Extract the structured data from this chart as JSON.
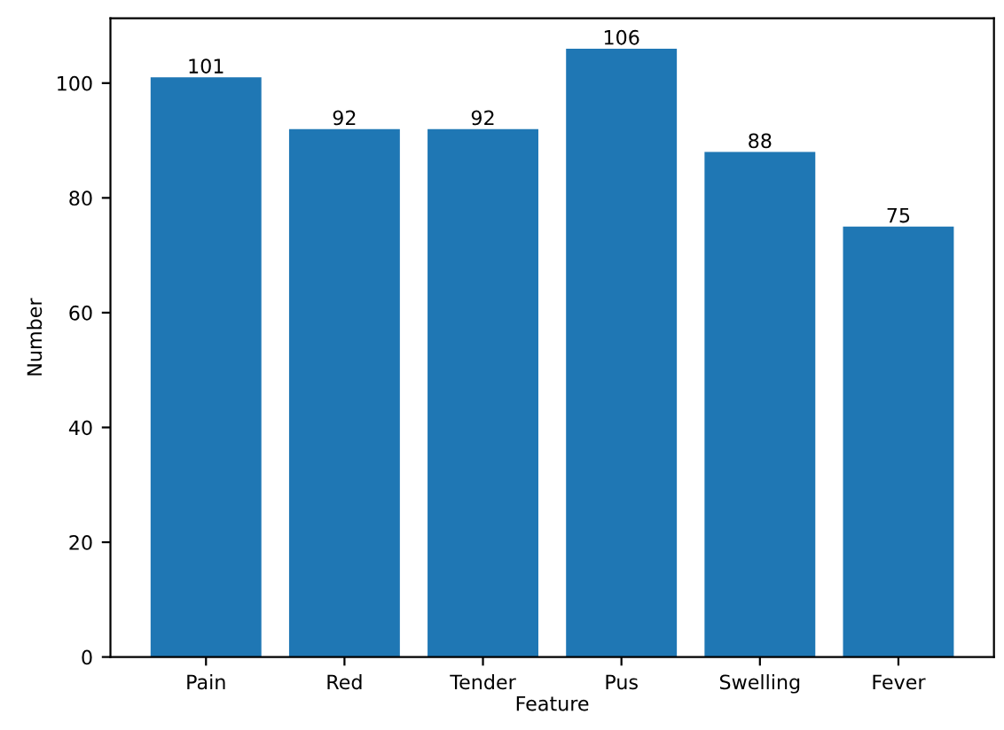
{
  "chart_data": {
    "type": "bar",
    "xlabel": "Feature",
    "ylabel": "Number",
    "categories": [
      "Pain",
      "Red",
      "Tender",
      "Pus",
      "Swelling",
      "Fever"
    ],
    "values": [
      101,
      92,
      92,
      106,
      88,
      75
    ],
    "color": "#1f77b4",
    "ylim": [
      0,
      111.3
    ],
    "yticks": [
      0,
      20,
      40,
      60,
      80,
      100
    ],
    "data_labels": true,
    "grid": false
  }
}
